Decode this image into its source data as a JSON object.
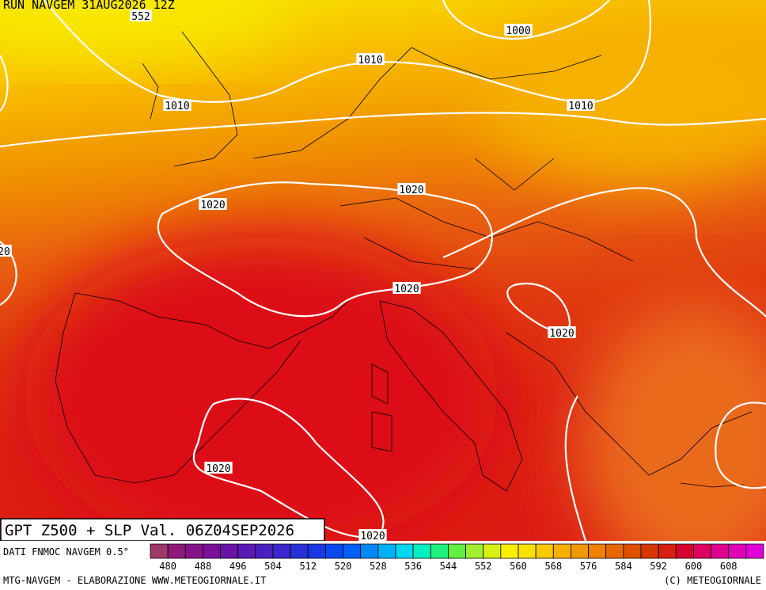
{
  "header": {
    "run": "RUN NAVGEM 31AUG2026 12Z"
  },
  "contour_labels": [
    552,
    1000,
    1010,
    1010,
    1010,
    1020,
    1020,
    20,
    1020,
    1020,
    1020,
    1020
  ],
  "product_label": "GPT Z500 + SLP Val. 06Z04SEP2026",
  "colorbar": {
    "source": "DATI FNMOC NAVGEM 0.5°",
    "ticks": [
      480,
      488,
      496,
      504,
      512,
      520,
      528,
      536,
      544,
      552,
      560,
      568,
      576,
      584,
      592,
      600,
      608
    ],
    "colors": [
      "#9e3a6a",
      "#8e1a7a",
      "#86128a",
      "#7a109a",
      "#6a12a8",
      "#5a18b4",
      "#4a20c0",
      "#3a28cc",
      "#2a30d8",
      "#1a38e4",
      "#0a48f0",
      "#0060f8",
      "#0088f8",
      "#00b0f8",
      "#00d8f0",
      "#00f0c0",
      "#20f080",
      "#60f040",
      "#a0f030",
      "#d8f010",
      "#f8f000",
      "#f8e000",
      "#f8c800",
      "#f8b000",
      "#f09800",
      "#f08000",
      "#e86800",
      "#e05000",
      "#d83800",
      "#d82010",
      "#d80030",
      "#e00060",
      "#e00090",
      "#e000b8",
      "#e000d8"
    ]
  },
  "footer": {
    "left": "MTG-NAVGEM - ELABORAZIONE WWW.METEOGIORNALE.IT",
    "right": "(C) METEOGIORNALE"
  }
}
